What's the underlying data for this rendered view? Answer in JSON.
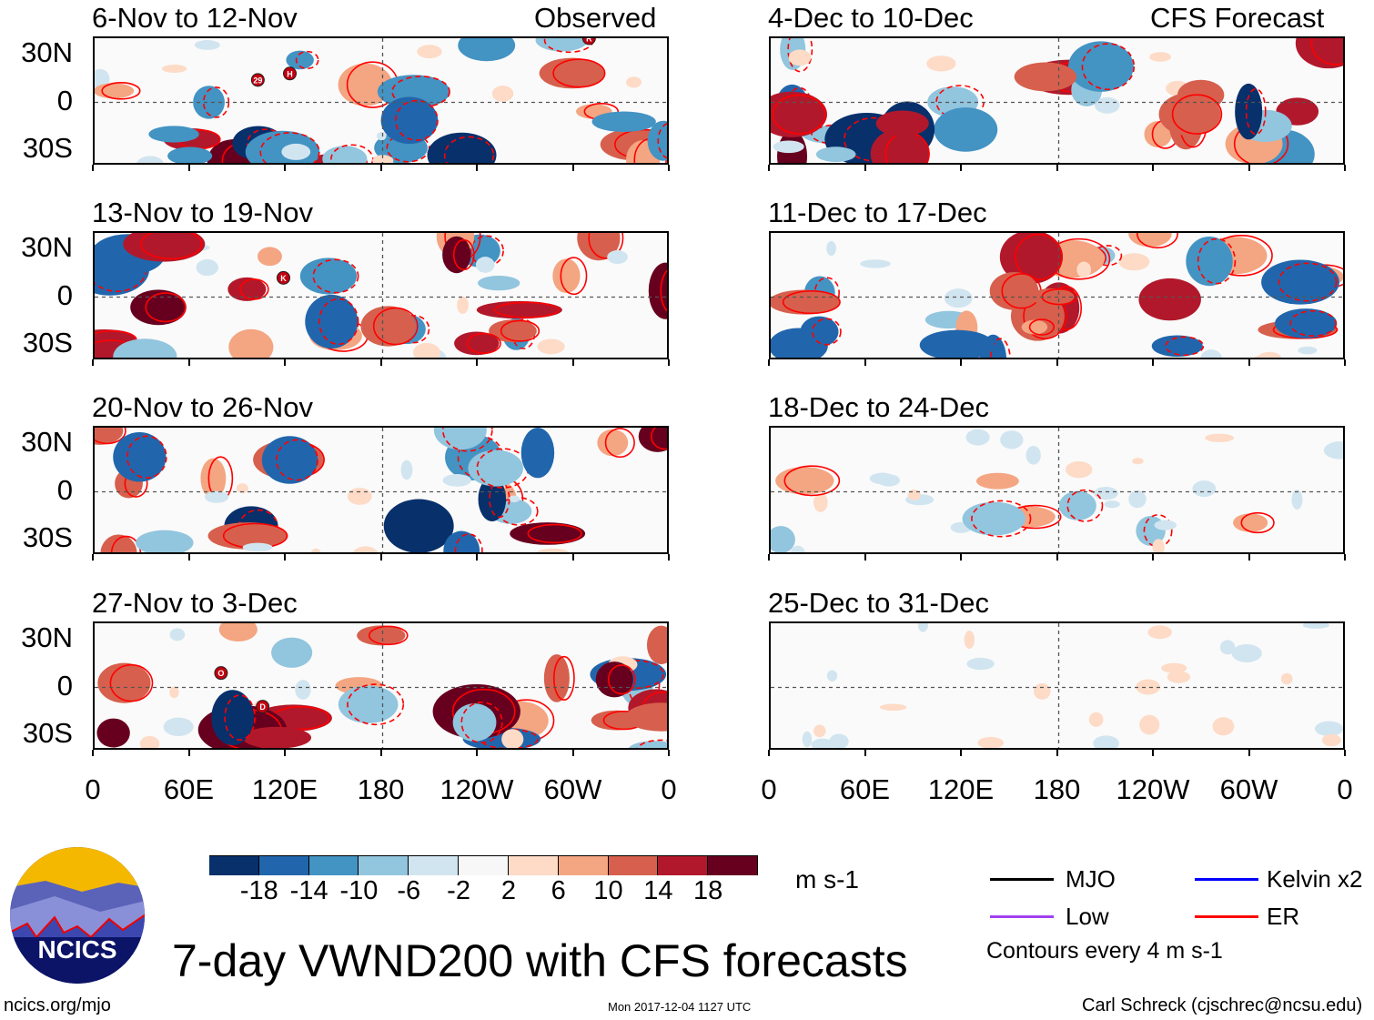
{
  "figure": {
    "title": "7-day VWND200 with CFS forecasts",
    "website": "ncics.org/mjo",
    "timestamp": "Mon 2017-12-04 1127 UTC",
    "author": "Carl Schreck (cjschrec@ncsu.edu)",
    "logo_text": "NCICS"
  },
  "columns": {
    "left_label": "Observed",
    "right_label": "CFS Forecast"
  },
  "lat_labels": [
    "30N",
    "0",
    "30S"
  ],
  "lon_labels": [
    "0",
    "60E",
    "120E",
    "180",
    "120W",
    "60W",
    "0"
  ],
  "panels": [
    {
      "title": "6-Nov to 12-Nov",
      "type": "observed",
      "storms": [
        {
          "label": "29",
          "lon": 102,
          "lat": 14
        },
        {
          "label": "H",
          "lon": 122,
          "lat": 18
        },
        {
          "label": "R",
          "lon": 309,
          "lat": 40
        }
      ]
    },
    {
      "title": "13-Nov to 19-Nov",
      "type": "observed",
      "storms": [
        {
          "label": "K",
          "lon": 118,
          "lat": 12
        }
      ]
    },
    {
      "title": "20-Nov to 26-Nov",
      "type": "observed",
      "storms": []
    },
    {
      "title": "27-Nov to 3-Dec",
      "type": "observed",
      "storms": [
        {
          "label": "O",
          "lon": 79,
          "lat": 9
        },
        {
          "label": "D",
          "lon": 105,
          "lat": -12
        }
      ]
    },
    {
      "title": "4-Dec to 10-Dec",
      "type": "forecast",
      "storms": []
    },
    {
      "title": "11-Dec to 17-Dec",
      "type": "forecast",
      "storms": []
    },
    {
      "title": "18-Dec to 24-Dec",
      "type": "forecast",
      "storms": []
    },
    {
      "title": "25-Dec to 31-Dec",
      "type": "forecast",
      "storms": []
    }
  ],
  "colorbar": {
    "unit": "m s-1",
    "labels": [
      "-18",
      "-14",
      "-10",
      "-6",
      "-2",
      "2",
      "6",
      "10",
      "14",
      "18"
    ],
    "colors": [
      "#08306b",
      "#2166ac",
      "#4393c3",
      "#92c5de",
      "#d1e5f0",
      "#f7f7f7",
      "#fddbc7",
      "#f4a582",
      "#d6604d",
      "#b2182b",
      "#67001f"
    ]
  },
  "legend": {
    "items": [
      {
        "label": "MJO",
        "color": "#000000"
      },
      {
        "label": "Kelvin x2",
        "color": "#0000ff"
      },
      {
        "label": "Low",
        "color": "#a040f0"
      },
      {
        "label": "ER",
        "color": "#ff0000"
      }
    ],
    "note": "Contours every 4 m s-1"
  }
}
